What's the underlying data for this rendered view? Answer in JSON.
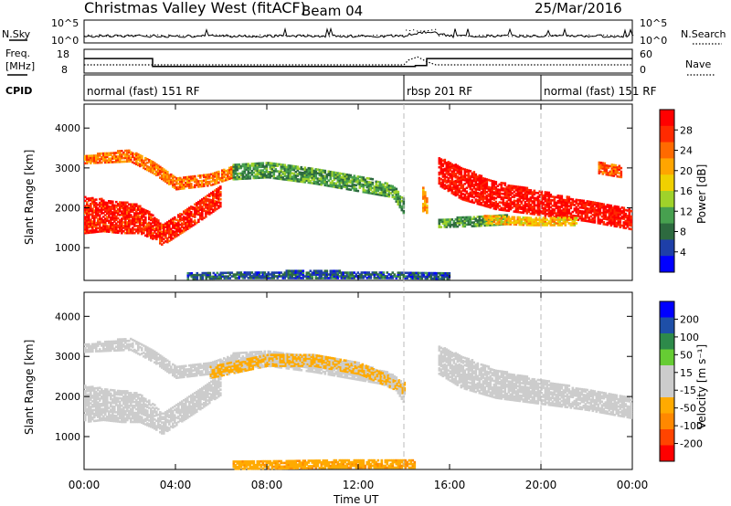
{
  "header": {
    "title": "Christmas Valley West (fitACF)",
    "beam": "Beam 04",
    "date": "25/Mar/2016"
  },
  "nsky_panel": {
    "left_label": "N.Sky",
    "right_label": "N.Search",
    "left_ticks": [
      "10^5",
      "10^0"
    ],
    "right_ticks": [
      "10^5",
      "10^0"
    ]
  },
  "freq_panel": {
    "left_label_1": "Freq.",
    "left_label_2": "[MHz]",
    "right_label": "Nave",
    "left_ticks": [
      "18",
      "8"
    ],
    "right_ticks": [
      "60",
      "0"
    ],
    "freq_mhz": [
      [
        0,
        14.6
      ],
      [
        3.0,
        14.6
      ],
      [
        3.0,
        10.5
      ],
      [
        14.5,
        10.5
      ],
      [
        14.5,
        11.0
      ],
      [
        15.0,
        11.0
      ],
      [
        15.0,
        14.6
      ],
      [
        24,
        14.6
      ]
    ],
    "nave": [
      [
        0,
        20
      ],
      [
        14.0,
        20
      ],
      [
        14.2,
        35
      ],
      [
        14.6,
        45
      ],
      [
        15.0,
        30
      ],
      [
        15.4,
        20
      ],
      [
        24,
        20
      ]
    ]
  },
  "cpid_panel": {
    "label": "CPID",
    "segments": [
      {
        "text": "normal (fast) 151 RF",
        "start": 0,
        "end": 14.0
      },
      {
        "text": "rbsp 201 RF",
        "start": 14.0,
        "end": 20.0
      },
      {
        "text": "normal (fast) 151 RF",
        "start": 20.0,
        "end": 24
      }
    ]
  },
  "colors": {
    "power_scale": [
      "#0000ff",
      "#1e3fa8",
      "#2d6a3f",
      "#47a04f",
      "#9fd22a",
      "#f0d000",
      "#ffa500",
      "#ff6a00",
      "#ff2a00",
      "#ff0000"
    ],
    "velocity_scale": [
      "#ff0000",
      "#ff4400",
      "#ff8800",
      "#ffaa00",
      "#cccccc",
      "#cccccc",
      "#66cc33",
      "#2d8a4a",
      "#1e4fa8",
      "#0000ff"
    ],
    "ground_scatter": "#c8c8c8"
  },
  "chart_data": [
    {
      "type": "heatmap",
      "name": "power",
      "ylabel": "Slant Range [km]",
      "yticks": [
        "1000",
        "2000",
        "3000",
        "4000"
      ],
      "ylim": [
        180,
        4600
      ],
      "colorbar_label": "Power [dB]",
      "colorbar_ticks": [
        "4",
        "8",
        "12",
        "16",
        "20",
        "24",
        "28"
      ],
      "colorbar_range": [
        0,
        30
      ],
      "bands": [
        {
          "t": [
            0.0,
            0.8,
            1.6,
            2.4,
            3.0,
            3.4,
            4.2,
            5.0,
            6.0
          ],
          "center": [
            1800,
            1800,
            1750,
            1700,
            1500,
            1300,
            1600,
            1900,
            2300
          ],
          "width": [
            900,
            800,
            800,
            700,
            600,
            500,
            500,
            500,
            500
          ],
          "value": 27
        },
        {
          "t": [
            0.0,
            1.0,
            2.0,
            3.0,
            4.0,
            5.5,
            6.5
          ],
          "center": [
            3200,
            3250,
            3300,
            3000,
            2600,
            2700,
            2900
          ],
          "width": [
            200,
            250,
            300,
            300,
            300,
            300,
            300
          ],
          "value": 22
        },
        {
          "t": [
            6.5,
            8.0,
            10.0,
            12.0,
            13.5,
            14.0
          ],
          "center": [
            2900,
            2950,
            2800,
            2600,
            2400,
            2000
          ],
          "width": [
            400,
            400,
            400,
            400,
            300,
            400
          ],
          "value": 10
        },
        {
          "t": [
            14.8,
            15.0
          ],
          "center": [
            2200,
            2100
          ],
          "width": [
            600,
            500
          ],
          "value": 20
        },
        {
          "t": [
            15.5,
            16.5,
            18.0,
            20.0,
            22.0,
            23.9
          ],
          "center": [
            2900,
            2600,
            2300,
            2100,
            1900,
            1700
          ],
          "width": [
            700,
            800,
            700,
            600,
            500,
            500
          ],
          "value": 28
        },
        {
          "t": [
            15.5,
            17.0,
            18.5
          ],
          "center": [
            1600,
            1650,
            1700
          ],
          "width": [
            200,
            250,
            250
          ],
          "value": 10
        },
        {
          "t": [
            17.5,
            19.5,
            21.5
          ],
          "center": [
            1700,
            1650,
            1650
          ],
          "width": [
            200,
            200,
            200
          ],
          "value": 18
        },
        {
          "t": [
            22.5,
            23.5
          ],
          "center": [
            3000,
            2900
          ],
          "width": [
            300,
            300
          ],
          "value": 24
        },
        {
          "t": [
            4.5,
            7.0,
            10.0,
            13.0,
            16.0
          ],
          "center": [
            280,
            300,
            320,
            300,
            280
          ],
          "width": [
            150,
            150,
            200,
            150,
            150
          ],
          "value": 6
        }
      ]
    },
    {
      "type": "heatmap",
      "name": "velocity",
      "ylabel": "Slant Range [km]",
      "yticks": [
        "1000",
        "2000",
        "3000",
        "4000"
      ],
      "ylim": [
        180,
        4600
      ],
      "colorbar_label": "Velocity [m s⁻¹]",
      "colorbar_ticks": [
        "200",
        "100",
        "50",
        "15",
        "-15",
        "-50",
        "-100",
        "-200"
      ],
      "colorbar_range": [
        -250,
        250
      ],
      "bands": [
        {
          "t": [
            0.0,
            0.8,
            1.6,
            2.4,
            3.0,
            3.4,
            4.2,
            5.0,
            6.0
          ],
          "center": [
            1800,
            1800,
            1750,
            1700,
            1500,
            1300,
            1600,
            1900,
            2300
          ],
          "width": [
            900,
            800,
            800,
            700,
            600,
            500,
            500,
            500,
            500
          ],
          "value": 0
        },
        {
          "t": [
            0.0,
            1.0,
            2.0,
            3.0,
            4.0,
            5.5,
            6.5
          ],
          "center": [
            3200,
            3250,
            3300,
            3000,
            2600,
            2700,
            2900
          ],
          "width": [
            200,
            250,
            300,
            300,
            300,
            300,
            300
          ],
          "value": 0
        },
        {
          "t": [
            6.5,
            8.0,
            10.0,
            12.0,
            13.5,
            14.0
          ],
          "center": [
            2900,
            2950,
            2800,
            2600,
            2400,
            2000
          ],
          "width": [
            400,
            400,
            400,
            400,
            300,
            400
          ],
          "value": 0
        },
        {
          "t": [
            15.5,
            16.5,
            18.0,
            20.0,
            22.0,
            23.9
          ],
          "center": [
            2900,
            2600,
            2300,
            2100,
            1900,
            1700
          ],
          "width": [
            700,
            800,
            700,
            600,
            500,
            500
          ],
          "value": 0
        },
        {
          "t": [
            5.5,
            8.0,
            10.0,
            12.0,
            14.0
          ],
          "center": [
            2600,
            2900,
            2900,
            2700,
            2200
          ],
          "width": [
            300,
            300,
            300,
            300,
            300
          ],
          "value": -60
        },
        {
          "t": [
            6.5,
            8.5,
            11.0,
            13.0,
            14.5
          ],
          "center": [
            280,
            300,
            320,
            310,
            300
          ],
          "width": [
            200,
            220,
            220,
            200,
            180
          ],
          "value": -80
        }
      ]
    }
  ],
  "xaxis": {
    "label": "Time UT",
    "ticks": [
      "00:00",
      "04:00",
      "08:00",
      "12:00",
      "16:00",
      "20:00",
      "00:00"
    ],
    "range_hours": [
      0,
      24
    ]
  }
}
